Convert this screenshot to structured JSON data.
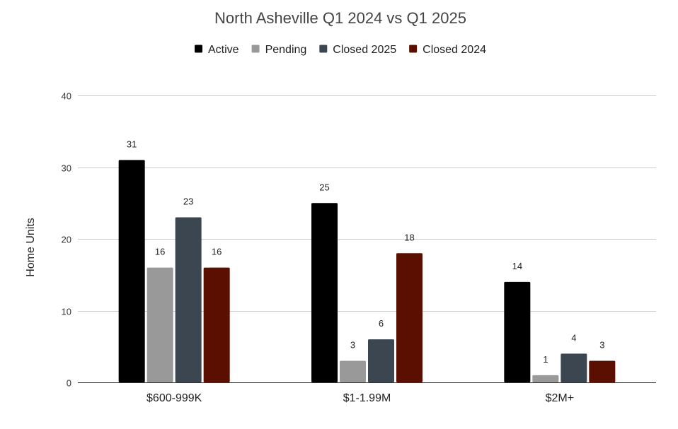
{
  "chart_data": {
    "type": "bar",
    "title": "North Asheville Q1 2024 vs Q1 2025",
    "xlabel": "",
    "ylabel": "Home Units",
    "ylim": [
      0,
      40
    ],
    "yticks": [
      0,
      10,
      20,
      30,
      40
    ],
    "ytick_labels": [
      "0",
      "10",
      "20",
      "30",
      "40"
    ],
    "grid": true,
    "legend_position": "top-center",
    "categories": [
      "$600-999K",
      "$1-1.99M",
      "$2M+"
    ],
    "series": [
      {
        "name": "Active",
        "color": "#000000",
        "values": [
          31,
          25,
          14
        ]
      },
      {
        "name": "Pending",
        "color": "#999999",
        "values": [
          16,
          3,
          1
        ]
      },
      {
        "name": "Closed 2025",
        "color": "#3c4650",
        "values": [
          23,
          6,
          4
        ]
      },
      {
        "name": "Closed 2024",
        "color": "#5a0f00",
        "values": [
          16,
          18,
          3
        ]
      }
    ]
  }
}
